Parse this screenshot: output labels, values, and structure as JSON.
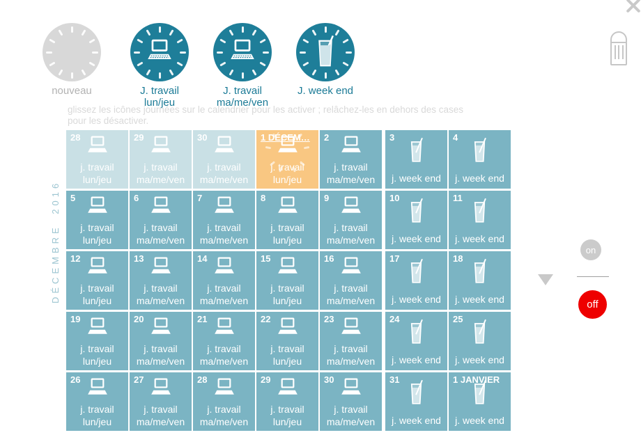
{
  "palette": {
    "teal_dark": "#1e7e99",
    "cell": "#7bb4c3",
    "cell_faded": "#c9e0e5",
    "cell_active": "#f9c782",
    "off_red": "#ee0000",
    "on_gray": "#cbcbcb",
    "nouveau_gray": "#d8d8d8",
    "text_light": "#d9d9d9",
    "month_text": "#9cc5d1",
    "legend_text": "#1a7a96"
  },
  "legend": {
    "items": [
      {
        "id": "nouveau",
        "icon": "dial-blank",
        "label_lines": [
          "nouveau"
        ]
      },
      {
        "id": "travail-lun-jeu",
        "icon": "laptop",
        "label_lines": [
          "J. travail",
          "lun/jeu"
        ]
      },
      {
        "id": "travail-ma-me-ven",
        "icon": "laptop",
        "label_lines": [
          "J. travail",
          "ma/me/ven"
        ]
      },
      {
        "id": "week-end",
        "icon": "drink",
        "label_lines": [
          "J. week end"
        ]
      }
    ]
  },
  "instructions": {
    "lines": [
      "glissez les icônes journées sur le calendrier pour les activer ; relâchez-les en dehors des cases",
      "pour les désactiver."
    ]
  },
  "month_label": "DÉCEMBRE 2016",
  "calendar": {
    "weeks": [
      [
        {
          "d": "28",
          "icon": "laptop",
          "lines": [
            "j. travail",
            "lun/jeu"
          ],
          "v": "faded"
        },
        {
          "d": "29",
          "icon": "laptop",
          "lines": [
            "j. travail",
            "ma/me/ven"
          ],
          "v": "faded"
        },
        {
          "d": "30",
          "icon": "laptop",
          "lines": [
            "j. travail",
            "ma/me/ven"
          ],
          "v": "faded"
        },
        {
          "d": "1 DÉCEM…",
          "icon": "laptop",
          "lines": [
            "j. travail",
            "lun/jeu"
          ],
          "v": "active"
        },
        {
          "d": "2",
          "icon": "laptop",
          "lines": [
            "j. travail",
            "ma/me/ven"
          ],
          "v": "normal"
        },
        {
          "d": "3",
          "icon": "drink",
          "lines": [
            "j. week end"
          ],
          "v": "normal"
        },
        {
          "d": "4",
          "icon": "drink",
          "lines": [
            "j. week end"
          ],
          "v": "normal"
        }
      ],
      [
        {
          "d": "5",
          "icon": "laptop",
          "lines": [
            "j. travail",
            "lun/jeu"
          ],
          "v": "normal"
        },
        {
          "d": "6",
          "icon": "laptop",
          "lines": [
            "j. travail",
            "ma/me/ven"
          ],
          "v": "normal"
        },
        {
          "d": "7",
          "icon": "laptop",
          "lines": [
            "j. travail",
            "ma/me/ven"
          ],
          "v": "normal"
        },
        {
          "d": "8",
          "icon": "laptop",
          "lines": [
            "j. travail",
            "lun/jeu"
          ],
          "v": "normal"
        },
        {
          "d": "9",
          "icon": "laptop",
          "lines": [
            "j. travail",
            "ma/me/ven"
          ],
          "v": "normal"
        },
        {
          "d": "10",
          "icon": "drink",
          "lines": [
            "j. week end"
          ],
          "v": "normal"
        },
        {
          "d": "11",
          "icon": "drink",
          "lines": [
            "j. week end"
          ],
          "v": "normal"
        }
      ],
      [
        {
          "d": "12",
          "icon": "laptop",
          "lines": [
            "j. travail",
            "lun/jeu"
          ],
          "v": "normal"
        },
        {
          "d": "13",
          "icon": "laptop",
          "lines": [
            "j. travail",
            "ma/me/ven"
          ],
          "v": "normal"
        },
        {
          "d": "14",
          "icon": "laptop",
          "lines": [
            "j. travail",
            "ma/me/ven"
          ],
          "v": "normal"
        },
        {
          "d": "15",
          "icon": "laptop",
          "lines": [
            "j. travail",
            "lun/jeu"
          ],
          "v": "normal"
        },
        {
          "d": "16",
          "icon": "laptop",
          "lines": [
            "j. travail",
            "ma/me/ven"
          ],
          "v": "normal"
        },
        {
          "d": "17",
          "icon": "drink",
          "lines": [
            "j. week end"
          ],
          "v": "normal"
        },
        {
          "d": "18",
          "icon": "drink",
          "lines": [
            "j. week end"
          ],
          "v": "normal"
        }
      ],
      [
        {
          "d": "19",
          "icon": "laptop",
          "lines": [
            "j. travail",
            "lun/jeu"
          ],
          "v": "normal"
        },
        {
          "d": "20",
          "icon": "laptop",
          "lines": [
            "j. travail",
            "ma/me/ven"
          ],
          "v": "normal"
        },
        {
          "d": "21",
          "icon": "laptop",
          "lines": [
            "j. travail",
            "ma/me/ven"
          ],
          "v": "normal"
        },
        {
          "d": "22",
          "icon": "laptop",
          "lines": [
            "j. travail",
            "lun/jeu"
          ],
          "v": "normal"
        },
        {
          "d": "23",
          "icon": "laptop",
          "lines": [
            "j. travail",
            "ma/me/ven"
          ],
          "v": "normal"
        },
        {
          "d": "24",
          "icon": "drink",
          "lines": [
            "j. week end"
          ],
          "v": "normal"
        },
        {
          "d": "25",
          "icon": "drink",
          "lines": [
            "j. week end"
          ],
          "v": "normal"
        }
      ],
      [
        {
          "d": "26",
          "icon": "laptop",
          "lines": [
            "j. travail",
            "lun/jeu"
          ],
          "v": "normal"
        },
        {
          "d": "27",
          "icon": "laptop",
          "lines": [
            "j. travail",
            "ma/me/ven"
          ],
          "v": "normal"
        },
        {
          "d": "28",
          "icon": "laptop",
          "lines": [
            "j. travail",
            "ma/me/ven"
          ],
          "v": "normal"
        },
        {
          "d": "29",
          "icon": "laptop",
          "lines": [
            "j. travail",
            "lun/jeu"
          ],
          "v": "normal"
        },
        {
          "d": "30",
          "icon": "laptop",
          "lines": [
            "j. travail",
            "ma/me/ven"
          ],
          "v": "normal"
        },
        {
          "d": "31",
          "icon": "drink",
          "lines": [
            "j. week end"
          ],
          "v": "normal"
        },
        {
          "d": "1 JANVIER",
          "icon": "drink",
          "lines": [
            "j. week end"
          ],
          "v": "normal"
        }
      ]
    ]
  },
  "controls": {
    "on_label": "on",
    "off_label": "off"
  }
}
